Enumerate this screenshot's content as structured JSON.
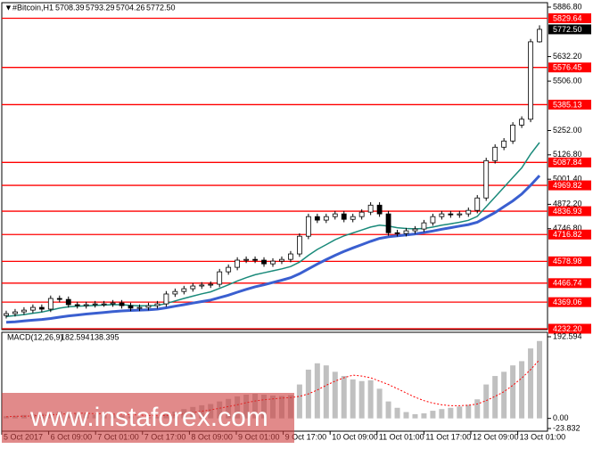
{
  "watermark": "www.instaforex.com",
  "chart_data": [
    {
      "type": "candlestick",
      "title": "#Bitcoin,H1",
      "header_values": [
        "5708.39",
        "5793.29",
        "5704.26",
        "5772.50"
      ],
      "x_labels": [
        "5 Oct 2017",
        "6 Oct 09:00",
        "7 Oct 01:00",
        "7 Oct 17:00",
        "8 Oct 09:00",
        "9 Oct 01:00",
        "9 Oct 17:00",
        "10 Oct 09:00",
        "11 Oct 01:00",
        "11 Oct 17:00",
        "12 Oct 09:00",
        "13 Oct 01:00"
      ],
      "open": [
        4300,
        4310,
        4319,
        4328,
        4342,
        4333,
        4388,
        4383,
        4356,
        4351,
        4356,
        4360,
        4360,
        4365,
        4351,
        4338,
        4342,
        4351,
        4360,
        4411,
        4424,
        4438,
        4452,
        4457,
        4461,
        4525,
        4548,
        4585,
        4589,
        4585,
        4566,
        4580,
        4589,
        4617,
        4708,
        4809,
        4791,
        4809,
        4823,
        4795,
        4809,
        4832,
        4868,
        4823,
        4726,
        4722,
        4736,
        4745,
        4777,
        4809,
        4823,
        4818,
        4823,
        4841,
        4905,
        5097,
        5166,
        5198,
        5280,
        5310,
        5708.39
      ],
      "high": [
        4325,
        4334,
        4343,
        4357,
        4357,
        4403,
        4403,
        4398,
        4371,
        4371,
        4375,
        4375,
        4380,
        4380,
        4366,
        4357,
        4366,
        4375,
        4426,
        4439,
        4453,
        4467,
        4472,
        4476,
        4540,
        4563,
        4600,
        4604,
        4604,
        4600,
        4595,
        4604,
        4632,
        4723,
        4824,
        4824,
        4824,
        4838,
        4838,
        4824,
        4847,
        4883,
        4883,
        4838,
        4741,
        4751,
        4760,
        4792,
        4824,
        4838,
        4838,
        4838,
        4856,
        4920,
        5112,
        5181,
        5213,
        5295,
        5325,
        5723,
        5793.29
      ],
      "low": [
        4285,
        4295,
        4304,
        4313,
        4318,
        4318,
        4368,
        4341,
        4336,
        4336,
        4341,
        4345,
        4345,
        4336,
        4323,
        4323,
        4327,
        4336,
        4345,
        4396,
        4409,
        4423,
        4437,
        4442,
        4446,
        4510,
        4533,
        4570,
        4570,
        4551,
        4551,
        4565,
        4574,
        4602,
        4693,
        4776,
        4776,
        4794,
        4780,
        4780,
        4794,
        4817,
        4808,
        4711,
        4707,
        4707,
        4721,
        4730,
        4762,
        4794,
        4803,
        4803,
        4808,
        4826,
        4890,
        5082,
        5151,
        5183,
        5265,
        5295,
        5704.26
      ],
      "close": [
        4310,
        4319,
        4328,
        4342,
        4333,
        4388,
        4383,
        4356,
        4351,
        4356,
        4360,
        4360,
        4365,
        4351,
        4338,
        4342,
        4351,
        4360,
        4411,
        4424,
        4438,
        4452,
        4457,
        4461,
        4525,
        4548,
        4585,
        4589,
        4585,
        4566,
        4580,
        4589,
        4617,
        4708,
        4809,
        4791,
        4809,
        4823,
        4795,
        4809,
        4832,
        4868,
        4823,
        4726,
        4722,
        4736,
        4745,
        4777,
        4809,
        4823,
        4818,
        4823,
        4841,
        4905,
        5097,
        5166,
        5198,
        5280,
        5310,
        5708.39,
        5772.5
      ],
      "series": [
        {
          "color": "#1a8a7a",
          "values": [
            4295,
            4300,
            4305,
            4312,
            4318,
            4328,
            4338,
            4345,
            4348,
            4350,
            4352,
            4354,
            4356,
            4356,
            4352,
            4350,
            4350,
            4352,
            4362,
            4375,
            4388,
            4400,
            4412,
            4422,
            4440,
            4458,
            4478,
            4495,
            4510,
            4520,
            4530,
            4540,
            4552,
            4575,
            4610,
            4640,
            4665,
            4690,
            4710,
            4725,
            4740,
            4755,
            4765,
            4760,
            4752,
            4748,
            4746,
            4748,
            4755,
            4765,
            4772,
            4780,
            4790,
            4810,
            4860,
            4910,
            4960,
            5010,
            5060,
            5130,
            5190
          ]
        },
        {
          "color": "#3a5fd0",
          "values": [
            4265,
            4268,
            4272,
            4276,
            4280,
            4285,
            4292,
            4298,
            4303,
            4308,
            4312,
            4316,
            4320,
            4324,
            4326,
            4328,
            4330,
            4333,
            4340,
            4348,
            4356,
            4364,
            4372,
            4380,
            4392,
            4405,
            4420,
            4435,
            4448,
            4458,
            4470,
            4482,
            4495,
            4515,
            4540,
            4565,
            4588,
            4610,
            4630,
            4648,
            4665,
            4682,
            4697,
            4705,
            4710,
            4715,
            4720,
            4727,
            4735,
            4744,
            4752,
            4760,
            4768,
            4780,
            4805,
            4830,
            4860,
            4890,
            4925,
            4970,
            5020
          ]
        }
      ],
      "ylim": [
        4232.2,
        5886.8
      ],
      "yticks": [
        {
          "value": 5886.8,
          "label": "5886.80"
        },
        {
          "value": 5632.2,
          "label": "5632.20"
        },
        {
          "value": 5506,
          "label": "5506.00"
        },
        {
          "value": 5252,
          "label": "5252.00"
        },
        {
          "value": 5126.8,
          "label": "5126.80"
        },
        {
          "value": 5001.4,
          "label": "5001.40"
        },
        {
          "value": 4872.2,
          "label": "4872.20"
        },
        {
          "value": 4746.8,
          "label": "4746.80"
        }
      ],
      "levels": [
        5829.64,
        5576.45,
        5385.13,
        5087.84,
        4969.82,
        4836.93,
        4716.82,
        4578.98,
        4466.74,
        4369.06,
        {
          "value": 4232.2,
          "label": "4232.20"
        }
      ],
      "level_color": "#ff0000",
      "current_price": {
        "value": 5772.5,
        "label": "5772.50"
      }
    },
    {
      "type": "macd",
      "title": "MACD(12,26,9)",
      "values": [
        5,
        6,
        8,
        10,
        11,
        14,
        16,
        15,
        13,
        11,
        9,
        8,
        8,
        7,
        5,
        3,
        3,
        4,
        10,
        16,
        22,
        27,
        31,
        34,
        40,
        46,
        52,
        56,
        58,
        56,
        54,
        53,
        55,
        80,
        115,
        130,
        125,
        110,
        100,
        92,
        88,
        90,
        70,
        40,
        25,
        15,
        10,
        12,
        18,
        22,
        25,
        28,
        32,
        45,
        80,
        100,
        110,
        125,
        135,
        165,
        182.594
      ],
      "signal": [
        4,
        5,
        5,
        6,
        7,
        8,
        10,
        11,
        12,
        12,
        11,
        11,
        10,
        10,
        9,
        8,
        7,
        6,
        7,
        8,
        11,
        14,
        17,
        20,
        24,
        28,
        32,
        37,
        41,
        44,
        46,
        48,
        49,
        52,
        58,
        67,
        78,
        88,
        96,
        102,
        100,
        96,
        88,
        80,
        70,
        60,
        50,
        42,
        36,
        32,
        30,
        30,
        31,
        34,
        42,
        52,
        63,
        78,
        95,
        115,
        138.395
      ],
      "color": "#c0c0c0",
      "signal_color": "#ff0000",
      "ylim": [
        -23.832,
        192.594
      ],
      "yticks": [
        192.594,
        {
          "value": 0,
          "label": "0.00"
        },
        -23.832
      ]
    }
  ]
}
